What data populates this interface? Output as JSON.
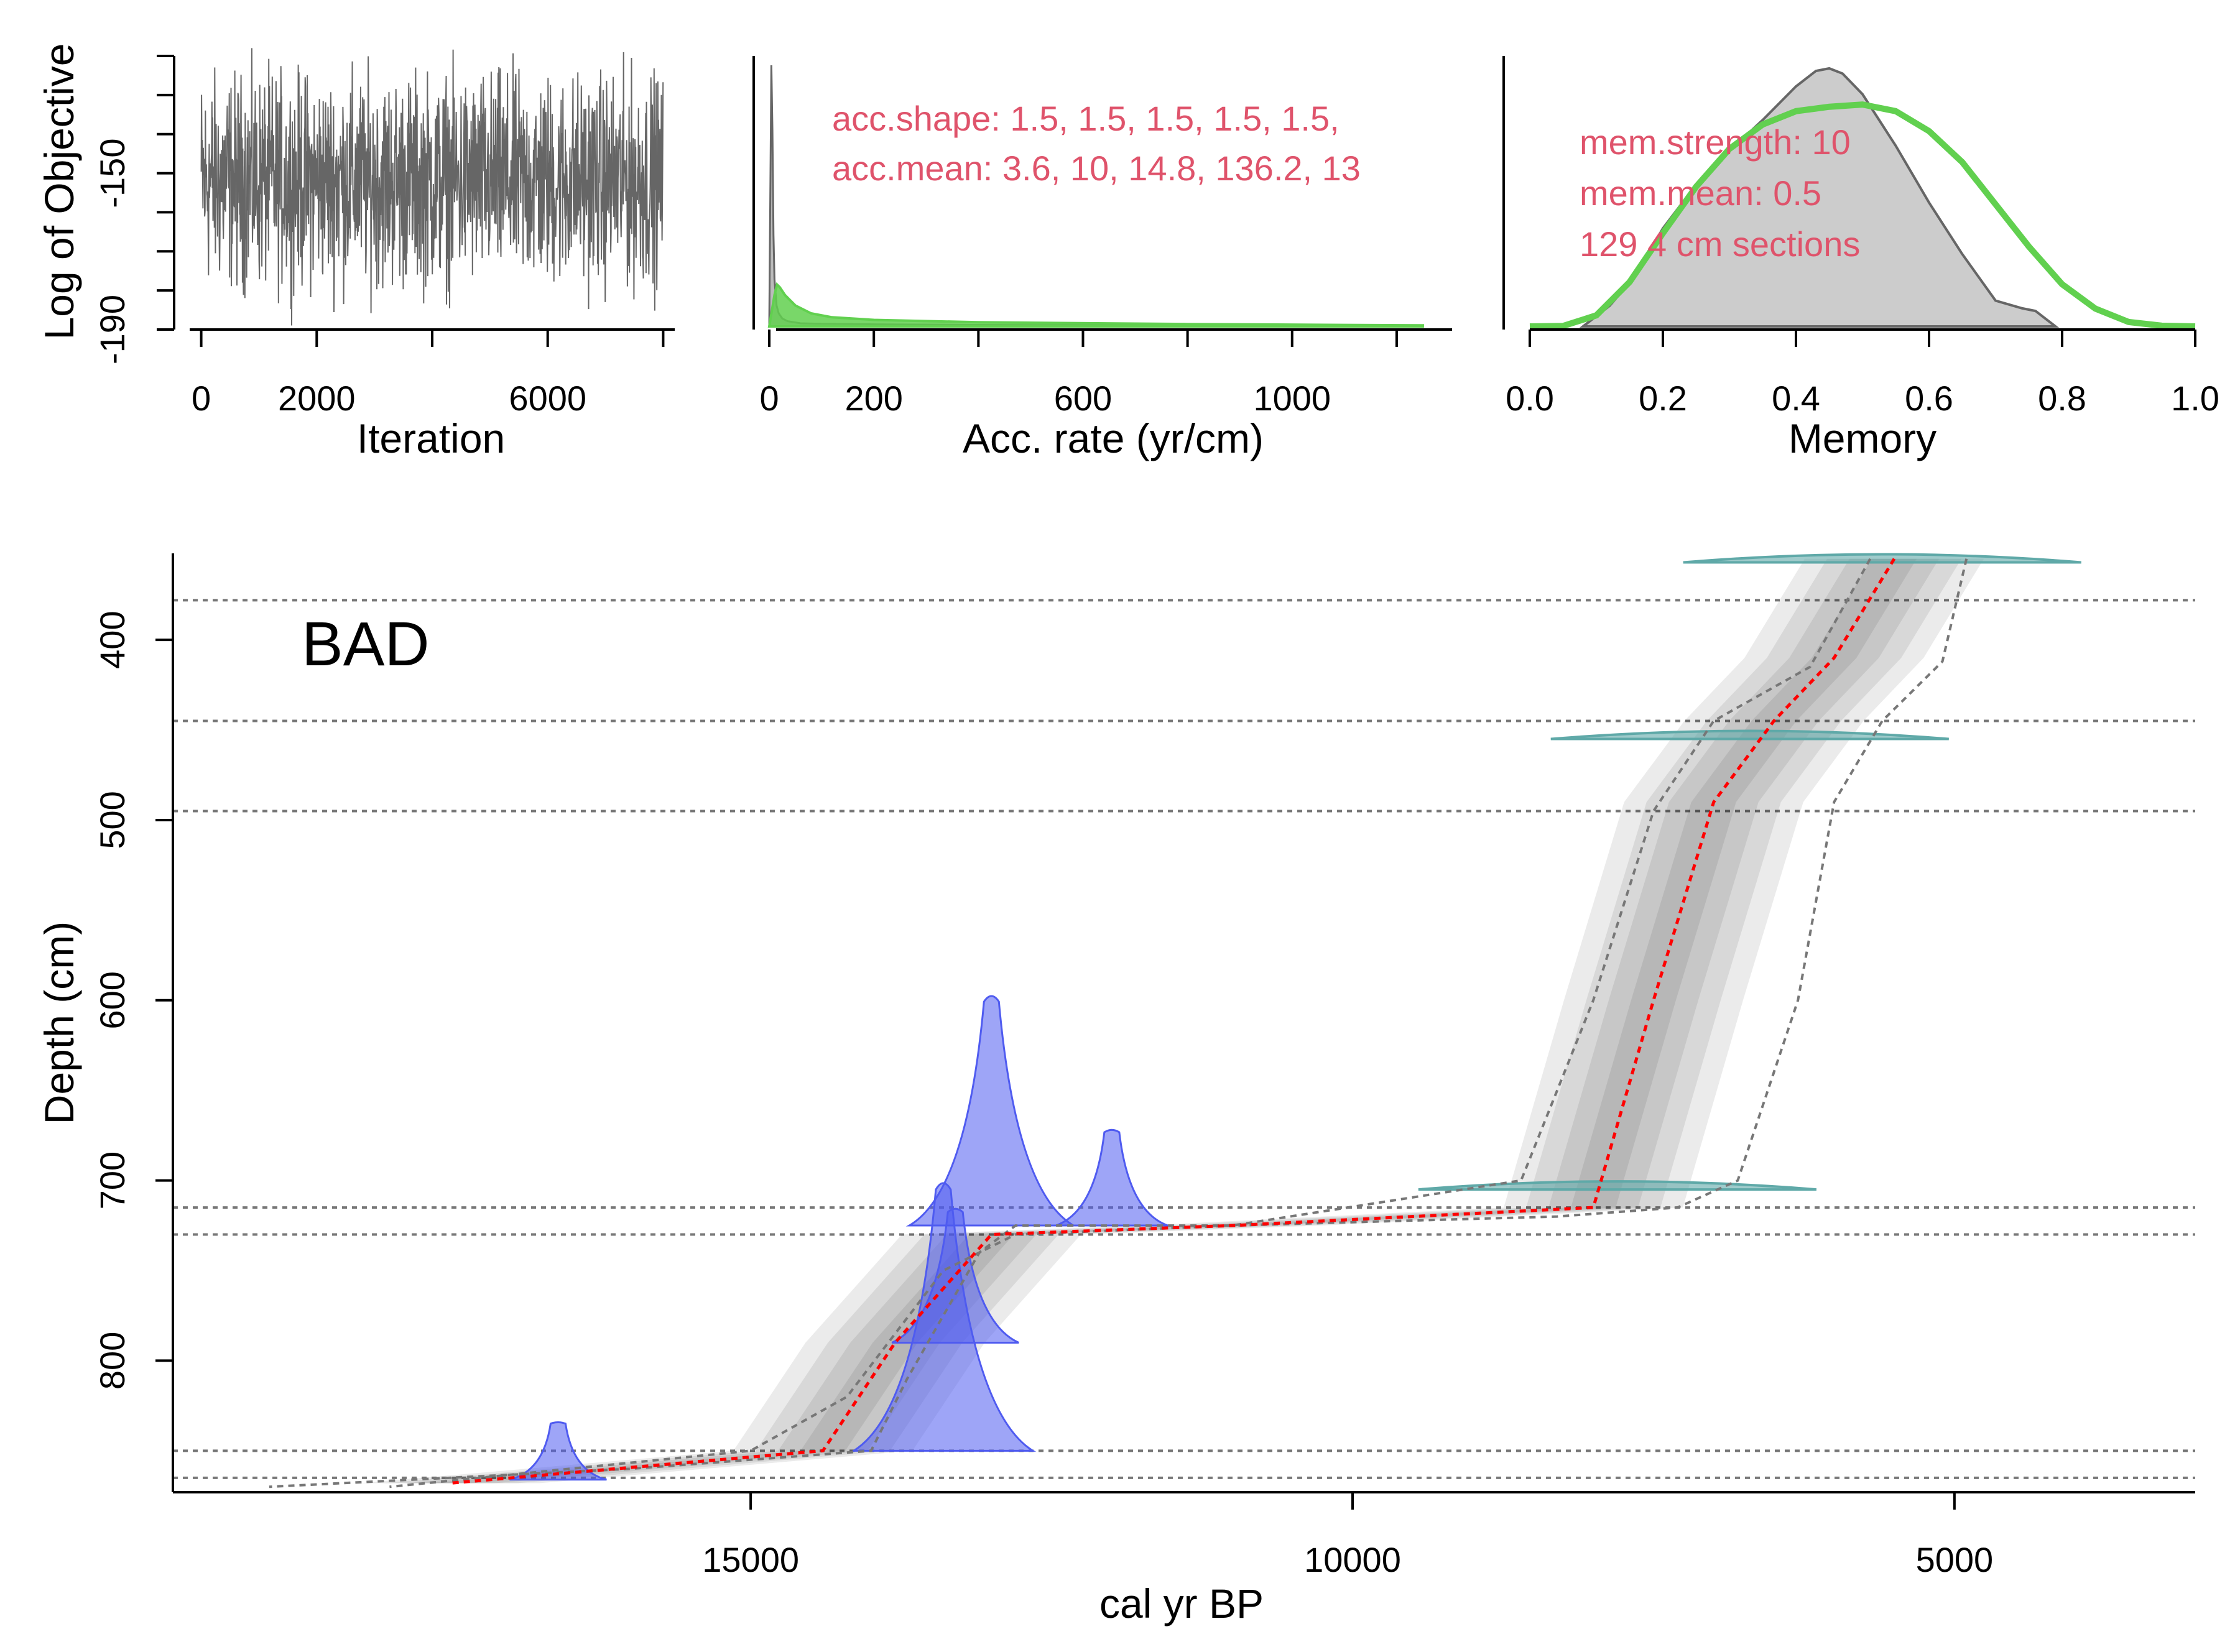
{
  "chart_data": [
    {
      "type": "line",
      "panel": "iteration-log",
      "xlabel": "Iteration",
      "ylabel": "Log of Objective",
      "xlim": [
        -200,
        8200
      ],
      "ylim": [
        -190,
        -120
      ],
      "xticks": [
        0,
        2000,
        4000,
        6000,
        8000
      ],
      "xticklabels": [
        "0",
        "2000",
        "",
        "6000",
        ""
      ],
      "yticks": [
        -190,
        -180,
        -170,
        -160,
        -150,
        -140,
        -130,
        -120
      ],
      "yticklabels": [
        "-190",
        "",
        "",
        "",
        "-150",
        "",
        "",
        ""
      ],
      "series": [
        {
          "color": "#666666",
          "values": []
        }
      ]
    },
    {
      "type": "area",
      "panel": "accumulation-rate",
      "xlabel": "Acc. rate (yr/cm)",
      "xlim": [
        -50,
        1300
      ],
      "xticks": [
        0,
        200,
        400,
        600,
        800,
        1000,
        1200
      ],
      "xticklabels": [
        "0",
        "200",
        "",
        "600",
        "",
        "1000",
        ""
      ],
      "annotations": [
        "acc.shape:  1.5, 1.5, 1.5, 1.5, 1.5,",
        "acc.mean:  3.6, 10, 14.8, 136.2, 13"
      ],
      "series": [
        {
          "color": "#666666",
          "x": [
            0,
            2,
            4,
            6,
            8,
            10,
            14,
            18,
            25,
            35,
            60,
            100,
            200,
            400,
            800,
            1250
          ],
          "values": [
            0.0,
            0.5,
            1.0,
            0.75,
            0.35,
            0.18,
            0.08,
            0.05,
            0.03,
            0.02,
            0.012,
            0.01,
            0.008,
            0.006,
            0.003,
            0.0
          ]
        },
        {
          "color": "#61D04F",
          "x": [
            0,
            5,
            10,
            15,
            20,
            30,
            50,
            80,
            120,
            200,
            400,
            800,
            1250
          ],
          "values": [
            0.0,
            0.06,
            0.12,
            0.16,
            0.15,
            0.12,
            0.08,
            0.05,
            0.035,
            0.025,
            0.016,
            0.009,
            0.004
          ]
        }
      ]
    },
    {
      "type": "area",
      "panel": "memory",
      "xlabel": "Memory",
      "xlim": [
        -0.02,
        1.02
      ],
      "xticks": [
        0.0,
        0.2,
        0.4,
        0.6,
        0.8,
        1.0
      ],
      "xticklabels": [
        "0.0",
        "0.2",
        "0.4",
        "0.6",
        "0.8",
        "1.0"
      ],
      "annotations": [
        "mem.strength: 10",
        "mem.mean: 0.5",
        "129 4 cm sections"
      ],
      "series": [
        {
          "color": "#666666",
          "x": [
            0.08,
            0.12,
            0.16,
            0.2,
            0.25,
            0.3,
            0.35,
            0.4,
            0.43,
            0.45,
            0.47,
            0.5,
            0.55,
            0.6,
            0.65,
            0.7,
            0.74,
            0.76,
            0.79
          ],
          "values": [
            0.0,
            0.08,
            0.2,
            0.38,
            0.55,
            0.68,
            0.8,
            0.93,
            0.99,
            1.0,
            0.98,
            0.9,
            0.7,
            0.48,
            0.28,
            0.1,
            0.07,
            0.06,
            0.0
          ]
        },
        {
          "color": "#61D04F",
          "x": [
            0.0,
            0.05,
            0.1,
            0.15,
            0.2,
            0.25,
            0.3,
            0.35,
            0.4,
            0.45,
            0.5,
            0.55,
            0.6,
            0.65,
            0.7,
            0.75,
            0.8,
            0.85,
            0.9,
            0.95,
            1.0
          ],
          "values": [
            0.0,
            0.002,
            0.05,
            0.2,
            0.42,
            0.63,
            0.8,
            0.91,
            0.97,
            0.99,
            1.0,
            0.97,
            0.88,
            0.74,
            0.55,
            0.36,
            0.19,
            0.08,
            0.02,
            0.003,
            0.0
          ]
        }
      ]
    },
    {
      "type": "line",
      "panel": "age-depth",
      "title": "BAD",
      "xlabel": "cal yr BP",
      "ylabel": "Depth (cm)",
      "xlim": [
        19800,
        3000
      ],
      "ylim": [
        873,
        352
      ],
      "xticks": [
        15000,
        10000,
        5000
      ],
      "xticklabels": [
        "15000",
        "10000",
        "5000"
      ],
      "yticks": [
        400,
        500,
        600,
        700,
        800
      ],
      "yticklabels": [
        "400",
        "500",
        "600",
        "700",
        "800"
      ],
      "hline_depths": [
        378,
        445,
        495,
        715,
        730,
        850,
        865
      ],
      "median_line": {
        "color": "#FF0000",
        "ages": [
          5500,
          6000,
          6500,
          7000,
          7500,
          8000,
          11000,
          13000,
          13800,
          14400,
          17500
        ],
        "depths": [
          355,
          410,
          445,
          490,
          600,
          715,
          725,
          730,
          790,
          850,
          868
        ]
      },
      "upper_range": {
        "color": "#777777",
        "ages": [
          4900,
          5100,
          5600,
          6000,
          6300,
          6800,
          7300,
          8300,
          11000,
          12800,
          13400,
          14200,
          15000,
          18000
        ],
        "depths": [
          355,
          412,
          445,
          490,
          600,
          700,
          715,
          720,
          725,
          730,
          750,
          820,
          850,
          870
        ]
      },
      "lower_range": {
        "color": "#777777",
        "ages": [
          5700,
          6200,
          7000,
          7500,
          8000,
          8600,
          11000,
          12800,
          13100,
          13700,
          14000,
          16000,
          19000
        ],
        "depths": [
          355,
          415,
          445,
          495,
          600,
          700,
          725,
          725,
          740,
          810,
          850,
          860,
          870
        ]
      },
      "calibrated_dates": [
        {
          "color": "#4F5BF0",
          "center_age": 13400,
          "depth": 850,
          "peak_height_cm": 140
        },
        {
          "color": "#4F5BF0",
          "center_age": 13000,
          "depth": 725,
          "peak_height_cm": 120
        },
        {
          "color": "#4F5BF0",
          "center_age": 12000,
          "depth": 725,
          "peak_height_cm": 50
        },
        {
          "color": "#4F5BF0",
          "center_age": 13300,
          "depth": 790,
          "peak_height_cm": 70
        },
        {
          "color": "#4F5BF0",
          "center_age": 16600,
          "depth": 866,
          "peak_height_cm": 30
        }
      ],
      "radiocarbon_dates": [
        {
          "color": "#5FA9A8",
          "center_age": 5600,
          "depth": 357
        },
        {
          "color": "#5FA9A8",
          "center_age": 6700,
          "depth": 455
        },
        {
          "color": "#5FA9A8",
          "center_age": 7800,
          "depth": 705
        }
      ]
    }
  ],
  "colors": {
    "annotation": "#DF536B",
    "trace": "#666666",
    "prior": "#61D04F",
    "posterior_fill": "#CCCCCC",
    "calibrated": "#4F5BF0",
    "radiocarbon": "#5FA9A8",
    "median": "#FF0000",
    "range": "#777777"
  }
}
